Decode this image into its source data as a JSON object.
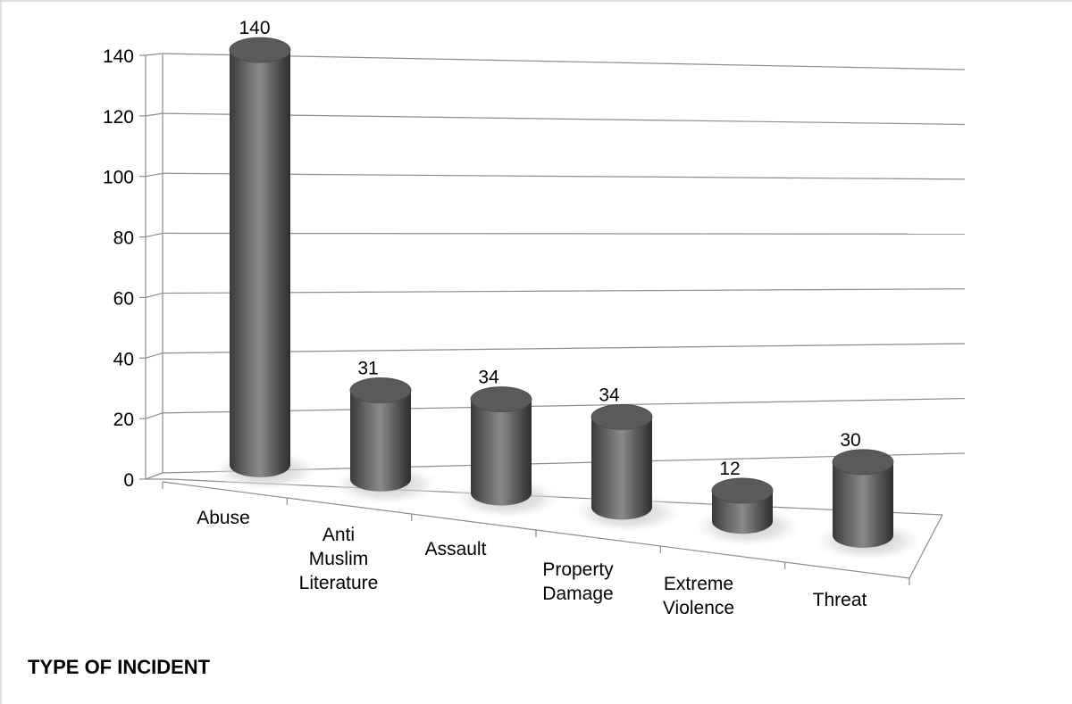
{
  "chart_data": {
    "type": "bar",
    "style": "3d-cylinder",
    "categories": [
      [
        "Abuse"
      ],
      [
        "Anti",
        "Muslim",
        "Literature"
      ],
      [
        "Assault"
      ],
      [
        "Property",
        "Damage"
      ],
      [
        "Extreme",
        "Violence"
      ],
      [
        "Threat"
      ]
    ],
    "values": [
      140,
      31,
      34,
      34,
      12,
      30
    ],
    "data_labels": [
      "140",
      "31",
      "34",
      "34",
      "12",
      "30"
    ],
    "xlabel": "TYPE OF INCIDENT",
    "ylabel": "",
    "ylim": [
      0,
      140
    ],
    "yticks": [
      0,
      20,
      40,
      60,
      80,
      100,
      120,
      140
    ],
    "grid": true,
    "legend": false,
    "colors": {
      "bar_dark": "#3a3a3a",
      "bar_mid": "#7a7a7a",
      "bar_light": "#a8a8a8",
      "bar_top": "#5a5a5a",
      "grid": "#8c8c8c",
      "axis": "#8c8c8c",
      "frame": "#b0b0b0"
    }
  }
}
